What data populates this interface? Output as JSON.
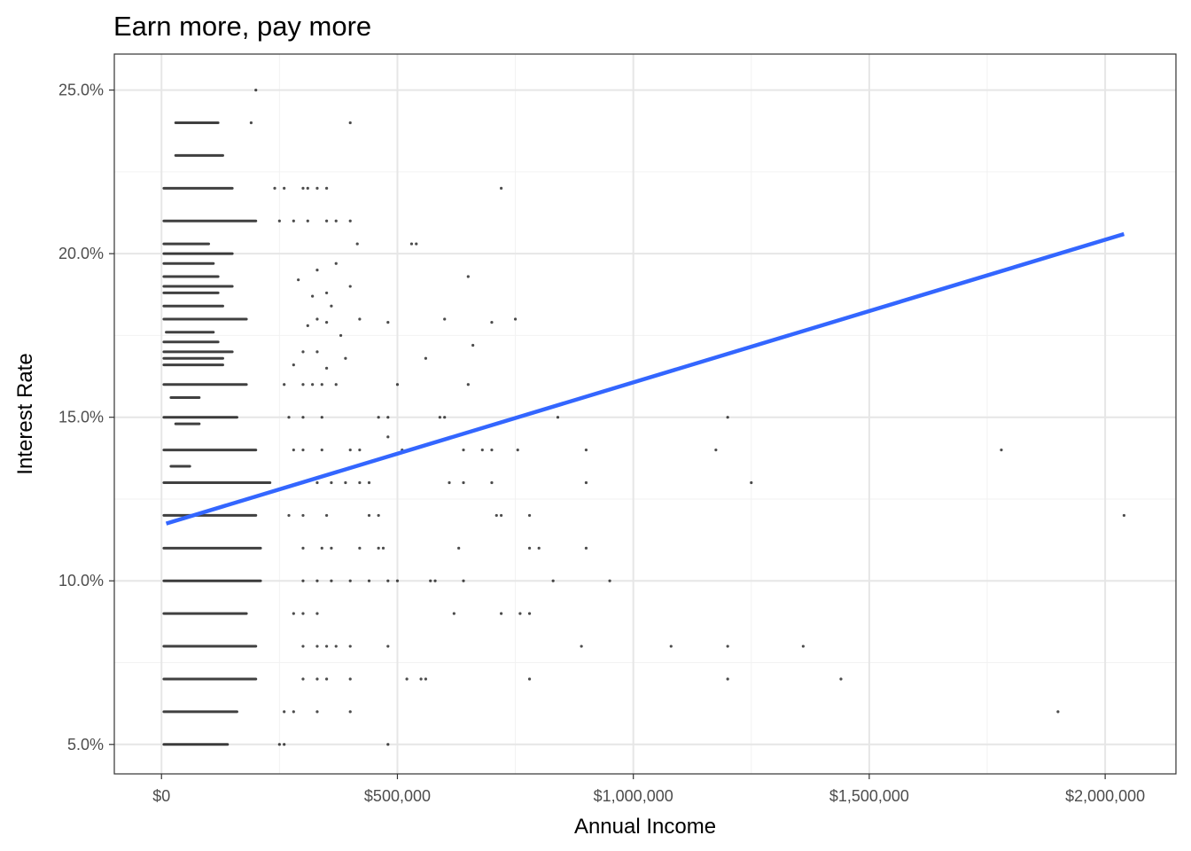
{
  "chart_data": {
    "type": "scatter",
    "title": "Earn more, pay more",
    "xlabel": "Annual Income",
    "ylabel": "Interest Rate",
    "xlim": [
      -100000,
      2150000
    ],
    "ylim": [
      4.1,
      26.1
    ],
    "x_ticks": [
      {
        "value": 0,
        "label": "$0"
      },
      {
        "value": 500000,
        "label": "$500,000"
      },
      {
        "value": 1000000,
        "label": "$1,000,000"
      },
      {
        "value": 1500000,
        "label": "$1,500,000"
      },
      {
        "value": 2000000,
        "label": "$2,000,000"
      }
    ],
    "y_ticks": [
      {
        "value": 5,
        "label": "5.0%"
      },
      {
        "value": 10,
        "label": "10.0%"
      },
      {
        "value": 15,
        "label": "15.0%"
      },
      {
        "value": 20,
        "label": "20.0%"
      },
      {
        "value": 25,
        "label": "25.0%"
      }
    ],
    "grid": true,
    "point_color": "#000000",
    "trend_color": "#3366FF",
    "trend_line": {
      "x": [
        10000,
        2040000
      ],
      "y": [
        11.75,
        20.6
      ]
    },
    "dense_bands": [
      {
        "y": 5,
        "from": 5000,
        "to": 140000
      },
      {
        "y": 6,
        "from": 5000,
        "to": 160000
      },
      {
        "y": 7,
        "from": 5000,
        "to": 200000
      },
      {
        "y": 8,
        "from": 5000,
        "to": 200000
      },
      {
        "y": 9,
        "from": 5000,
        "to": 180000
      },
      {
        "y": 10,
        "from": 5000,
        "to": 210000
      },
      {
        "y": 11,
        "from": 5000,
        "to": 210000
      },
      {
        "y": 12,
        "from": 5000,
        "to": 200000
      },
      {
        "y": 13,
        "from": 5000,
        "to": 230000
      },
      {
        "y": 14,
        "from": 5000,
        "to": 200000
      },
      {
        "y": 15,
        "from": 5000,
        "to": 160000
      },
      {
        "y": 16,
        "from": 5000,
        "to": 180000
      },
      {
        "y": 17,
        "from": 5000,
        "to": 150000
      },
      {
        "y": 18,
        "from": 5000,
        "to": 180000
      },
      {
        "y": 19,
        "from": 5000,
        "to": 150000
      },
      {
        "y": 20,
        "from": 5000,
        "to": 150000
      },
      {
        "y": 21,
        "from": 5000,
        "to": 200000
      },
      {
        "y": 22,
        "from": 5000,
        "to": 150000
      },
      {
        "y": 23,
        "from": 30000,
        "to": 130000
      },
      {
        "y": 24,
        "from": 30000,
        "to": 120000
      },
      {
        "y": 16.6,
        "from": 5000,
        "to": 130000
      },
      {
        "y": 16.8,
        "from": 5000,
        "to": 130000
      },
      {
        "y": 17.3,
        "from": 5000,
        "to": 120000
      },
      {
        "y": 17.6,
        "from": 10000,
        "to": 110000
      },
      {
        "y": 18.4,
        "from": 5000,
        "to": 130000
      },
      {
        "y": 18.8,
        "from": 5000,
        "to": 120000
      },
      {
        "y": 19.3,
        "from": 5000,
        "to": 120000
      },
      {
        "y": 19.7,
        "from": 5000,
        "to": 110000
      },
      {
        "y": 20.3,
        "from": 5000,
        "to": 100000
      },
      {
        "y": 15.6,
        "from": 20000,
        "to": 80000
      },
      {
        "y": 14.8,
        "from": 30000,
        "to": 80000
      },
      {
        "y": 13.5,
        "from": 20000,
        "to": 60000
      }
    ],
    "points": [
      [
        200000,
        25.0
      ],
      [
        400000,
        24.0
      ],
      [
        190000,
        24.0
      ],
      [
        720000,
        22.0
      ],
      [
        350000,
        22.0
      ],
      [
        310000,
        22.0
      ],
      [
        300000,
        22.0
      ],
      [
        240000,
        22.0
      ],
      [
        260000,
        22.0
      ],
      [
        330000,
        22.0
      ],
      [
        400000,
        21.0
      ],
      [
        350000,
        21.0
      ],
      [
        310000,
        21.0
      ],
      [
        280000,
        21.0
      ],
      [
        370000,
        21.0
      ],
      [
        250000,
        21.0
      ],
      [
        530000,
        20.3
      ],
      [
        540000,
        20.3
      ],
      [
        415000,
        20.3
      ],
      [
        650000,
        19.3
      ],
      [
        370000,
        19.7
      ],
      [
        400000,
        19.0
      ],
      [
        330000,
        19.5
      ],
      [
        290000,
        19.2
      ],
      [
        320000,
        18.7
      ],
      [
        350000,
        18.8
      ],
      [
        360000,
        18.4
      ],
      [
        480000,
        17.9
      ],
      [
        600000,
        18.0
      ],
      [
        700000,
        17.9
      ],
      [
        750000,
        18.0
      ],
      [
        420000,
        18.0
      ],
      [
        330000,
        18.0
      ],
      [
        350000,
        17.9
      ],
      [
        310000,
        17.8
      ],
      [
        380000,
        17.5
      ],
      [
        660000,
        17.2
      ],
      [
        560000,
        16.8
      ],
      [
        390000,
        16.8
      ],
      [
        350000,
        16.5
      ],
      [
        300000,
        17.0
      ],
      [
        330000,
        17.0
      ],
      [
        280000,
        16.6
      ],
      [
        500000,
        16.0
      ],
      [
        650000,
        16.0
      ],
      [
        370000,
        16.0
      ],
      [
        340000,
        16.0
      ],
      [
        320000,
        16.0
      ],
      [
        300000,
        16.0
      ],
      [
        260000,
        16.0
      ],
      [
        460000,
        15.0
      ],
      [
        480000,
        15.0
      ],
      [
        590000,
        15.0
      ],
      [
        600000,
        15.0
      ],
      [
        840000,
        15.0
      ],
      [
        1200000,
        15.0
      ],
      [
        340000,
        15.0
      ],
      [
        270000,
        15.0
      ],
      [
        300000,
        15.0
      ],
      [
        480000,
        14.4
      ],
      [
        400000,
        14.0
      ],
      [
        420000,
        14.0
      ],
      [
        510000,
        14.0
      ],
      [
        640000,
        14.0
      ],
      [
        680000,
        14.0
      ],
      [
        700000,
        14.0
      ],
      [
        755000,
        14.0
      ],
      [
        900000,
        14.0
      ],
      [
        1175000,
        14.0
      ],
      [
        1780000,
        14.0
      ],
      [
        300000,
        14.0
      ],
      [
        340000,
        14.0
      ],
      [
        280000,
        14.0
      ],
      [
        360000,
        13.0
      ],
      [
        390000,
        13.0
      ],
      [
        420000,
        13.0
      ],
      [
        440000,
        13.0
      ],
      [
        610000,
        13.0
      ],
      [
        640000,
        13.0
      ],
      [
        700000,
        13.0
      ],
      [
        900000,
        13.0
      ],
      [
        1250000,
        13.0
      ],
      [
        330000,
        13.0
      ],
      [
        300000,
        13.0
      ],
      [
        350000,
        12.0
      ],
      [
        440000,
        12.0
      ],
      [
        460000,
        12.0
      ],
      [
        710000,
        12.0
      ],
      [
        720000,
        12.0
      ],
      [
        780000,
        12.0
      ],
      [
        2040000,
        12.0
      ],
      [
        300000,
        12.0
      ],
      [
        270000,
        12.0
      ],
      [
        360000,
        11.0
      ],
      [
        420000,
        11.0
      ],
      [
        460000,
        11.0
      ],
      [
        470000,
        11.0
      ],
      [
        630000,
        11.0
      ],
      [
        780000,
        11.0
      ],
      [
        800000,
        11.0
      ],
      [
        900000,
        11.0
      ],
      [
        300000,
        11.0
      ],
      [
        340000,
        11.0
      ],
      [
        360000,
        10.0
      ],
      [
        400000,
        10.0
      ],
      [
        440000,
        10.0
      ],
      [
        570000,
        10.0
      ],
      [
        580000,
        10.0
      ],
      [
        640000,
        10.0
      ],
      [
        830000,
        10.0
      ],
      [
        950000,
        10.0
      ],
      [
        300000,
        10.0
      ],
      [
        330000,
        10.0
      ],
      [
        480000,
        10.0
      ],
      [
        500000,
        10.0
      ],
      [
        620000,
        9.0
      ],
      [
        720000,
        9.0
      ],
      [
        760000,
        9.0
      ],
      [
        780000,
        9.0
      ],
      [
        300000,
        9.0
      ],
      [
        330000,
        9.0
      ],
      [
        280000,
        9.0
      ],
      [
        480000,
        8.0
      ],
      [
        890000,
        8.0
      ],
      [
        1080000,
        8.0
      ],
      [
        1200000,
        8.0
      ],
      [
        1360000,
        8.0
      ],
      [
        350000,
        8.0
      ],
      [
        370000,
        8.0
      ],
      [
        400000,
        8.0
      ],
      [
        300000,
        8.0
      ],
      [
        330000,
        8.0
      ],
      [
        400000,
        7.0
      ],
      [
        520000,
        7.0
      ],
      [
        550000,
        7.0
      ],
      [
        560000,
        7.0
      ],
      [
        780000,
        7.0
      ],
      [
        1200000,
        7.0
      ],
      [
        1440000,
        7.0
      ],
      [
        350000,
        7.0
      ],
      [
        300000,
        7.0
      ],
      [
        330000,
        7.0
      ],
      [
        400000,
        6.0
      ],
      [
        1900000,
        6.0
      ],
      [
        330000,
        6.0
      ],
      [
        260000,
        6.0
      ],
      [
        280000,
        6.0
      ],
      [
        480000,
        5.0
      ],
      [
        250000,
        5.0
      ],
      [
        260000,
        5.0
      ]
    ]
  }
}
